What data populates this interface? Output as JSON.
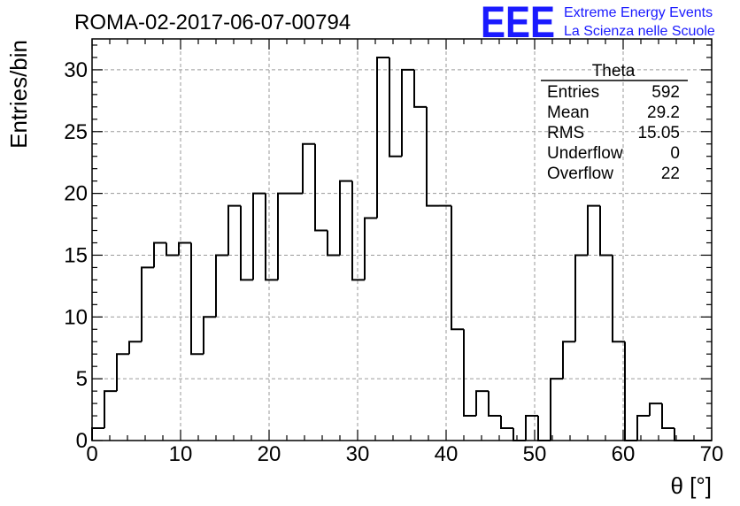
{
  "chart_data": {
    "type": "histogram",
    "title": "ROMA-02-2017-06-07-00794",
    "xlabel": "θ [°]",
    "ylabel": "Entries/bin",
    "xlim": [
      0,
      70
    ],
    "ylim": [
      0,
      32.5
    ],
    "x_ticks": [
      0,
      10,
      20,
      30,
      40,
      50,
      60,
      70
    ],
    "y_ticks": [
      0,
      5,
      10,
      15,
      20,
      25,
      30
    ],
    "grid": true,
    "bin_width": 1.4,
    "bin_start": 0,
    "values": [
      1,
      4,
      7,
      8,
      14,
      16,
      15,
      16,
      7,
      10,
      15,
      19,
      13,
      20,
      13,
      20,
      20,
      24,
      17,
      15,
      21,
      13,
      18,
      31,
      23,
      30,
      27,
      19,
      19,
      9,
      2,
      4,
      2,
      1,
      0,
      2,
      0,
      5,
      8,
      15,
      19,
      15,
      8,
      0,
      2,
      3,
      1,
      0,
      0,
      0
    ],
    "stats": {
      "title": "Theta",
      "rows": [
        {
          "label": "Entries",
          "value": "592"
        },
        {
          "label": "Mean",
          "value": "29.2"
        },
        {
          "label": "RMS",
          "value": "15.05"
        },
        {
          "label": "Underflow",
          "value": "0"
        },
        {
          "label": "Overflow",
          "value": "22"
        }
      ]
    }
  },
  "logo": {
    "mark": "EEE",
    "line1": "Extreme Energy Events",
    "line2": "La Scienza nelle Scuole"
  }
}
